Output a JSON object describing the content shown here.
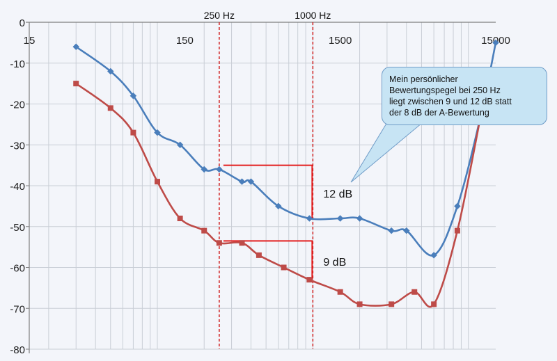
{
  "chart_data": {
    "type": "line",
    "x_scale": "log",
    "xlim": [
      15,
      15000
    ],
    "ylim": [
      -80,
      0
    ],
    "x_ticks": [
      {
        "value": 15,
        "label": "15"
      },
      {
        "value": 150,
        "label": "150"
      },
      {
        "value": 1500,
        "label": "1500"
      },
      {
        "value": 15000,
        "label": "15000"
      }
    ],
    "y_ticks": [
      0,
      -10,
      -20,
      -30,
      -40,
      -50,
      -60,
      -70,
      -80
    ],
    "y_tick_labels": [
      "0",
      "-10",
      "-20",
      "-30",
      "-40",
      "-50",
      "-60",
      "-70",
      "-80"
    ],
    "grid": true,
    "series": [
      {
        "color": "#4a7ebb",
        "marker": "diamond",
        "points": [
          [
            30,
            -6
          ],
          [
            50,
            -12
          ],
          [
            70,
            -18
          ],
          [
            100,
            -27
          ],
          [
            140,
            -30
          ],
          [
            200,
            -36
          ],
          [
            250,
            -36
          ],
          [
            350,
            -39
          ],
          [
            400,
            -39
          ],
          [
            600,
            -45
          ],
          [
            950,
            -48
          ],
          [
            1500,
            -48
          ],
          [
            2000,
            -48
          ],
          [
            3200,
            -51
          ],
          [
            4000,
            -51
          ],
          [
            6000,
            -57
          ],
          [
            8500,
            -45
          ],
          [
            12000,
            -23
          ],
          [
            15000,
            -5
          ]
        ]
      },
      {
        "color": "#be4b48",
        "marker": "square",
        "points": [
          [
            30,
            -15
          ],
          [
            50,
            -21
          ],
          [
            70,
            -27
          ],
          [
            100,
            -39
          ],
          [
            140,
            -48
          ],
          [
            200,
            -51
          ],
          [
            250,
            -54
          ],
          [
            350,
            -54
          ],
          [
            450,
            -57
          ],
          [
            650,
            -60
          ],
          [
            950,
            -63
          ],
          [
            1500,
            -66
          ],
          [
            2000,
            -69
          ],
          [
            3200,
            -69
          ],
          [
            4500,
            -66
          ],
          [
            6000,
            -69
          ],
          [
            8500,
            -51
          ],
          [
            12000,
            -23
          ]
        ]
      }
    ],
    "reference_lines": [
      {
        "x": 250,
        "label": "250 Hz",
        "color": "#d01f1f"
      },
      {
        "x": 1000,
        "label": "1000 Hz",
        "color": "#d01f1f"
      }
    ],
    "brackets": [
      {
        "x_from": 250,
        "x_to": 1000,
        "y_top": -35,
        "y_bottom": -48,
        "label": "12 dB",
        "color": "#e31e1e"
      },
      {
        "x_from": 250,
        "x_to": 1000,
        "y_top": -53.5,
        "y_bottom": -63,
        "label": "9 dB",
        "color": "#e31e1e"
      }
    ],
    "annotation": {
      "lines": [
        "Mein persönlicher",
        "Bewertungspegel  bei 250 Hz",
        "liegt zwischen 9 und 12 dB statt",
        "der 8 dB der A-Bewertung"
      ]
    }
  },
  "colors": {
    "background": "#f3f5fa",
    "grid": "#c9ced6",
    "axis": "#7f7f7f",
    "callout_fill": "#c7e4f4",
    "callout_border": "#6f9cc8"
  }
}
